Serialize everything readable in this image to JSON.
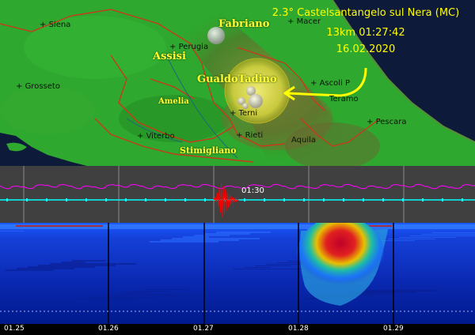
{
  "cities": [
    {
      "name": "Siena"
    },
    {
      "name": "Perugia"
    },
    {
      "name": "Macer"
    },
    {
      "name": "Grosseto"
    },
    {
      "name": "Ascoli P"
    },
    {
      "name": "Teramo"
    },
    {
      "name": "Terni"
    },
    {
      "name": "Pescara"
    },
    {
      "name": "Viterbo"
    },
    {
      "name": "Rieti"
    },
    {
      "name": "Aquila"
    }
  ],
  "places": {
    "fabriano": "Fabriano",
    "assisi": "Assisi",
    "gualdo_tadino": "GualdoTadino",
    "amelia": "Amelia",
    "stimigliano": "Stimigliano"
  },
  "event": {
    "line1": "2.3° Castelsantangelo sul Nera (MC)",
    "line2": "13km 01:27:42",
    "line3": "16.02.2020"
  },
  "seismogram": {
    "time_label": "01:30",
    "trace_color": "#ff00ff",
    "baseline_color": "#00ffff",
    "event_color": "#ff0000"
  },
  "spectrogram": {
    "time_labels": [
      "01.25",
      "01.26",
      "01.27",
      "01.28",
      "01.29"
    ],
    "background_color": "#0033cc"
  },
  "colors": {
    "label_yellow": "#ffff33",
    "map_green": "#2ea82e",
    "sea_blue": "#0e1a3a",
    "border_red": "#c83a1a"
  }
}
